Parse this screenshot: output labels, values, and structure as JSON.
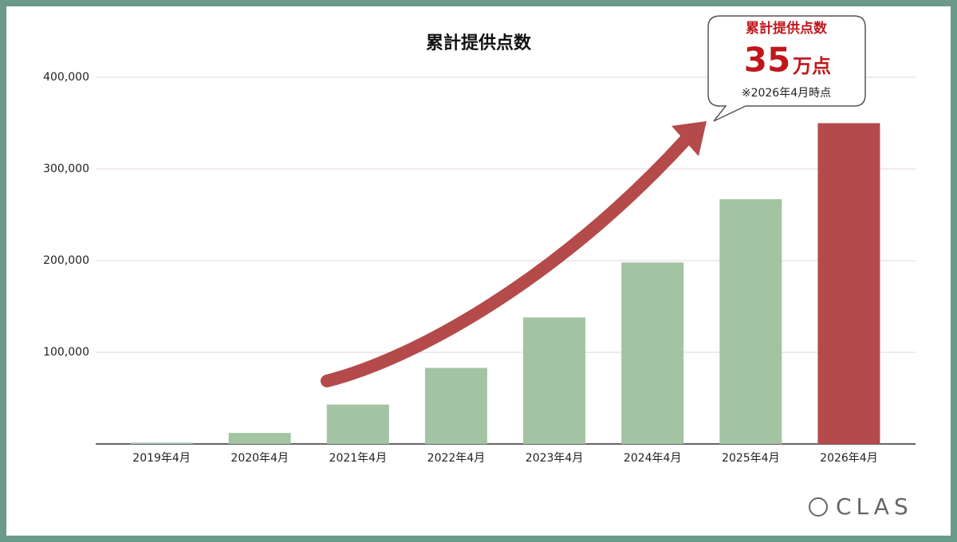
{
  "chart_data": {
    "type": "bar",
    "title": "累計提供点数",
    "categories": [
      "2019年4月",
      "2020年4月",
      "2021年4月",
      "2022年4月",
      "2023年4月",
      "2024年4月",
      "2025年4月",
      "2026年4月"
    ],
    "values": [
      1500,
      12000,
      43000,
      83000,
      138000,
      198000,
      267000,
      350000
    ],
    "colors": [
      "#a9c6b4",
      "#a3c4a3",
      "#a3c4a3",
      "#a3c4a3",
      "#a3c4a3",
      "#a3c4a3",
      "#a3c4a3",
      "#b44a4a"
    ],
    "ylim": [
      0,
      400000
    ],
    "yticks": [
      {
        "value": 100000,
        "label": "100,000"
      },
      {
        "value": 200000,
        "label": "200,000"
      },
      {
        "value": 300000,
        "label": "300,000"
      },
      {
        "value": 400000,
        "label": "400,000"
      }
    ],
    "grid": true,
    "annotations": {
      "callout_title": "累計提供点数",
      "callout_value": "35",
      "callout_unit": "万点",
      "callout_note": "※2026年4月時点"
    },
    "logo": "CLAS"
  }
}
